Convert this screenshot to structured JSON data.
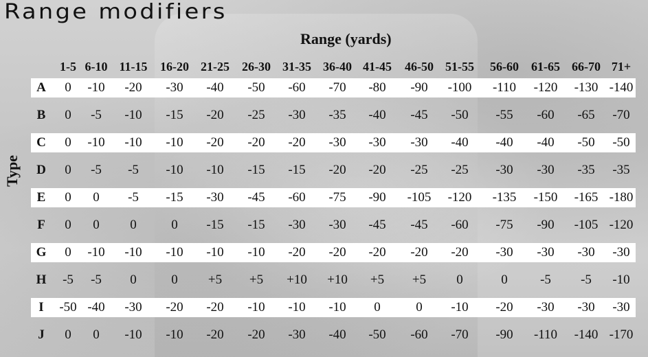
{
  "title": "Range modifiers",
  "column_group_heading": "Range (yards)",
  "row_axis_label": "Type",
  "columns": [
    "1-5",
    "6-10",
    "11-15",
    "16-20",
    "21-25",
    "26-30",
    "31-35",
    "36-40",
    "41-45",
    "46-50",
    "51-55",
    "56-60",
    "61-65",
    "66-70",
    "71+"
  ],
  "rows": [
    {
      "label": "A",
      "values": [
        "0",
        "-10",
        "-20",
        "-30",
        "-40",
        "-50",
        "-60",
        "-70",
        "-80",
        "-90",
        "-100",
        "-110",
        "-120",
        "-130",
        "-140"
      ]
    },
    {
      "label": "B",
      "values": [
        "0",
        "-5",
        "-10",
        "-15",
        "-20",
        "-25",
        "-30",
        "-35",
        "-40",
        "-45",
        "-50",
        "-55",
        "-60",
        "-65",
        "-70"
      ]
    },
    {
      "label": "C",
      "values": [
        "0",
        "-10",
        "-10",
        "-10",
        "-20",
        "-20",
        "-20",
        "-30",
        "-30",
        "-30",
        "-40",
        "-40",
        "-40",
        "-50",
        "-50"
      ]
    },
    {
      "label": "D",
      "values": [
        "0",
        "-5",
        "-5",
        "-10",
        "-10",
        "-15",
        "-15",
        "-20",
        "-20",
        "-25",
        "-25",
        "-30",
        "-30",
        "-35",
        "-35"
      ]
    },
    {
      "label": "E",
      "values": [
        "0",
        "0",
        "-5",
        "-15",
        "-30",
        "-45",
        "-60",
        "-75",
        "-90",
        "-105",
        "-120",
        "-135",
        "-150",
        "-165",
        "-180"
      ]
    },
    {
      "label": "F",
      "values": [
        "0",
        "0",
        "0",
        "0",
        "-15",
        "-15",
        "-30",
        "-30",
        "-45",
        "-45",
        "-60",
        "-75",
        "-90",
        "-105",
        "-120"
      ]
    },
    {
      "label": "G",
      "values": [
        "0",
        "-10",
        "-10",
        "-10",
        "-10",
        "-10",
        "-20",
        "-20",
        "-20",
        "-20",
        "-20",
        "-30",
        "-30",
        "-30",
        "-30"
      ]
    },
    {
      "label": "H",
      "values": [
        "-5",
        "-5",
        "0",
        "0",
        "+5",
        "+5",
        "+10",
        "+10",
        "+5",
        "+5",
        "0",
        "0",
        "-5",
        "-5",
        "-10"
      ]
    },
    {
      "label": "I",
      "values": [
        "-50",
        "-40",
        "-30",
        "-20",
        "-20",
        "-10",
        "-10",
        "-10",
        "0",
        "0",
        "-10",
        "-20",
        "-30",
        "-30",
        "-30"
      ]
    },
    {
      "label": "J",
      "values": [
        "0",
        "0",
        "-10",
        "-10",
        "-20",
        "-20",
        "-30",
        "-40",
        "-50",
        "-60",
        "-70",
        "-90",
        "-110",
        "-140",
        "-170"
      ]
    }
  ]
}
